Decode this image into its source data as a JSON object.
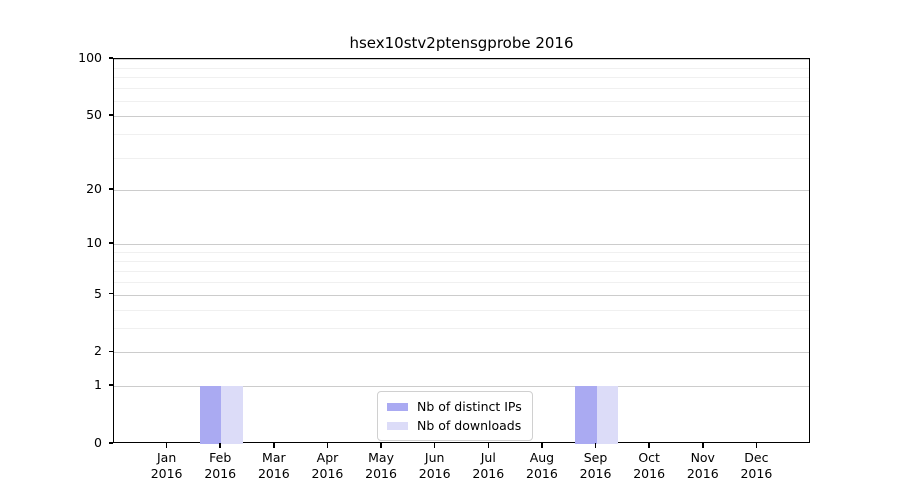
{
  "chart_data": {
    "type": "bar",
    "title": "hsex10stv2ptensgprobe 2016",
    "categories": [
      "Jan",
      "Feb",
      "Mar",
      "Apr",
      "May",
      "Jun",
      "Jul",
      "Aug",
      "Sep",
      "Oct",
      "Nov",
      "Dec"
    ],
    "xtick_year": "2016",
    "series": [
      {
        "name": "Nb of distinct IPs",
        "color": "#aaaaf2",
        "values": [
          0,
          1,
          0,
          0,
          0,
          0,
          0,
          0,
          1,
          0,
          0,
          0
        ]
      },
      {
        "name": "Nb of downloads",
        "color": "#dcdcf8",
        "values": [
          0,
          1,
          0,
          0,
          0,
          0,
          0,
          0,
          1,
          0,
          0,
          0
        ]
      }
    ],
    "yticks": [
      100,
      50,
      20,
      10,
      5,
      2,
      1,
      0
    ],
    "minor_gridlines": [
      3,
      4,
      6,
      7,
      8,
      9,
      30,
      40,
      60,
      70,
      80,
      90
    ],
    "scale": "log10(1+y)",
    "ylim": [
      0,
      100
    ],
    "grid": true,
    "legend_position": "lower center",
    "colors": {
      "grid_major": "#cccccc",
      "grid_minor": "#f0f0f0",
      "spine": "#000000",
      "background": "#ffffff"
    }
  }
}
